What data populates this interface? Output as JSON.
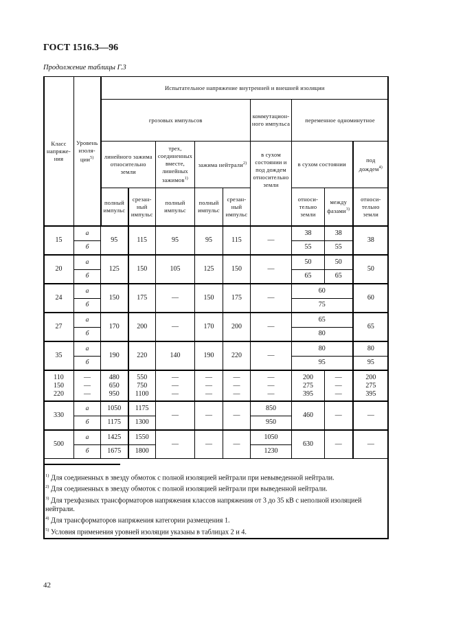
{
  "doc_title": "ГОСТ 1516.3—96",
  "subtitle": "Продолжение таблицы Г.3",
  "header": {
    "class": "Класс напряже-ния",
    "level": "Уровень изоля-ции",
    "level_sup": "5)",
    "test_voltage": "Испытательное напряжение внутренней и внешней изоляции",
    "lightning": "грозовых импульсов",
    "switching": "коммутацион-ного импульса",
    "ac": "переменное одноминутное",
    "line_terminal": "линейного зажима относительно земли",
    "three_terminals": "трех, соединенных вместе, линейных зажимов",
    "three_sup": "1)",
    "neutral": "зажима нейтрали",
    "neutral_sup": "2)",
    "dry_rain_earth": "в сухом состоянии и под дождем относительно земли",
    "dry": "в сухом состоянии",
    "rain": "под дождем",
    "rain_sup": "4)",
    "full_impulse": "полный импульс",
    "chopped_impulse": "срезан-ный импульс",
    "rel_earth": "относи-тельно земли",
    "between_phases": "между фазами",
    "phases_sup": "3)"
  },
  "rows": [
    {
      "class": "15",
      "levels": [
        "а",
        "б"
      ],
      "lin_full": "95",
      "lin_cut": "115",
      "three_full": "95",
      "neut_full": "95",
      "neut_cut": "115",
      "comm": "—",
      "dry_earth": [
        "38",
        "55"
      ],
      "dry_phase": [
        "38",
        "55"
      ],
      "rain": "38"
    },
    {
      "class": "20",
      "levels": [
        "а",
        "б"
      ],
      "lin_full": "125",
      "lin_cut": "150",
      "three_full": "105",
      "neut_full": "125",
      "neut_cut": "150",
      "comm": "—",
      "dry_earth": [
        "50",
        "65"
      ],
      "dry_phase": [
        "50",
        "65"
      ],
      "rain": "50"
    },
    {
      "class": "24",
      "levels": [
        "а",
        "б"
      ],
      "lin_full": "150",
      "lin_cut": "175",
      "three_full": "—",
      "neut_full": "150",
      "neut_cut": "175",
      "comm": "—",
      "dry": [
        "60",
        "75"
      ],
      "rain": "60"
    },
    {
      "class": "27",
      "levels": [
        "а",
        "б"
      ],
      "lin_full": "170",
      "lin_cut": "200",
      "three_full": "—",
      "neut_full": "170",
      "neut_cut": "200",
      "comm": "—",
      "dry": [
        "65",
        "80"
      ],
      "rain": "65"
    },
    {
      "class": "35",
      "levels": [
        "а",
        "б"
      ],
      "lin_full": "190",
      "lin_cut": "220",
      "three_full": "140",
      "neut_full": "190",
      "neut_cut": "220",
      "comm": "—",
      "dry": [
        "80",
        "95"
      ],
      "rain": [
        "80",
        "95"
      ]
    },
    {
      "class": "110\n150\n220",
      "level": "—\n—\n—",
      "lin_full": "480\n650\n950",
      "lin_cut": "550\n750\n1100",
      "three_full": "—\n—\n—",
      "neut_full": "—\n—\n—",
      "neut_cut": "—\n—\n—",
      "comm": "—\n—\n—",
      "dry_earth": "200\n275\n395",
      "dry_phase": "—\n—\n—",
      "rain": "200\n275\n395"
    },
    {
      "class": "330",
      "levels": [
        "а",
        "б"
      ],
      "lin_full": [
        "1050",
        "1175"
      ],
      "lin_cut": [
        "1175",
        "1300"
      ],
      "three_full": "—",
      "neut_full": "—",
      "neut_cut": "—",
      "comm": [
        "850",
        "950"
      ],
      "dry_earth": "460",
      "dry_phase": "—",
      "rain": "—"
    },
    {
      "class": "500",
      "levels": [
        "а",
        "б"
      ],
      "lin_full": [
        "1425",
        "1675"
      ],
      "lin_cut": [
        "1550",
        "1800"
      ],
      "three_full": "—",
      "neut_full": "—",
      "neut_cut": "—",
      "comm": [
        "1050",
        "1230"
      ],
      "dry_earth": "630",
      "dry_phase": "—",
      "rain": "—"
    }
  ],
  "footnotes": [
    {
      "mark": "1)",
      "text": "Для соединенных в звезду обмоток с полной изоляцией нейтрали при невыведенной нейтрали."
    },
    {
      "mark": "2)",
      "text": "Для соединенных в звезду обмоток с полной изоляцией нейтрали при выведенной нейтрали."
    },
    {
      "mark": "3)",
      "text": "Для трехфазных трансформаторов напряжения классов напряжения от 3 до 35 кВ с неполной изоляцией нейтрали."
    },
    {
      "mark": "4)",
      "text": "Для трансформаторов напряжения категории размещения 1."
    },
    {
      "mark": "5)",
      "text": "Условия применения уровней изоляции указаны в таблицах 2 и 4."
    }
  ],
  "page_number": "42"
}
